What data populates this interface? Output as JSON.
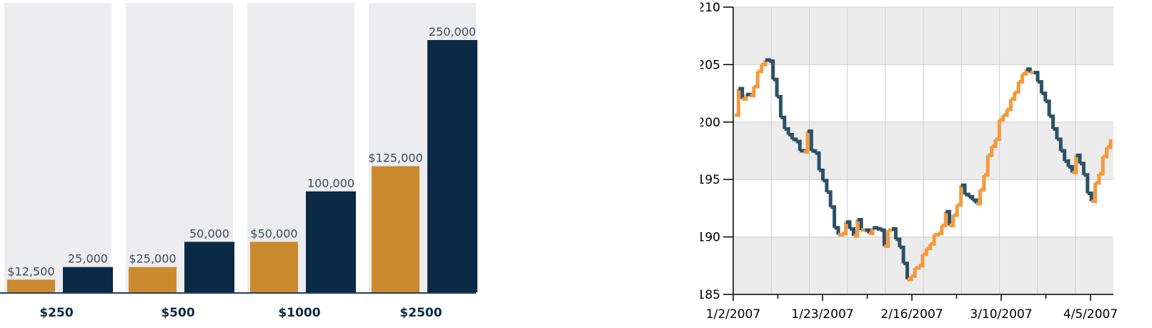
{
  "chart_data": [
    {
      "type": "bar",
      "categories": [
        "$250",
        "$500",
        "$1000",
        "$2500"
      ],
      "series": [
        {
          "values": [
            12500,
            25000,
            50000,
            125000
          ],
          "labels": [
            "$12,500",
            "$25,000",
            "$50,000",
            "$125,000"
          ]
        },
        {
          "values": [
            25000,
            50000,
            100000,
            250000
          ],
          "labels": [
            "25,000",
            "50,000",
            "100,000",
            "250,000"
          ]
        }
      ],
      "colors": {
        "series1": "#cc8a2e",
        "series2": "#0b2a45",
        "column_bg": "#ededf0",
        "baseline": "#1f3f5f"
      },
      "ylim": [
        0,
        250000
      ],
      "title": "",
      "xlabel": "",
      "ylabel": ""
    },
    {
      "type": "line",
      "title": "",
      "xlabel": "",
      "ylabel": "",
      "ylim": [
        185,
        210
      ],
      "yticks": [
        "210",
        "205",
        "200",
        "195",
        "190",
        "185"
      ],
      "xtick_labels": [
        "1/2/2007",
        "1/23/2007",
        "2/16/2007",
        "3/10/2007",
        "4/5/2007"
      ],
      "grid": true,
      "colors": {
        "up": "#f39a3c",
        "down": "#2d5066",
        "band": "#ececec",
        "grid": "#cfcfcf"
      },
      "series": [
        {
          "values": [
            200.6,
            202.9,
            202.0,
            202.4,
            202.3,
            203.1,
            204.4,
            205.0,
            205.4,
            205.3,
            203.7,
            202.2,
            200.4,
            199.4,
            198.9,
            198.5,
            198.3,
            197.5,
            197.4,
            199.2,
            197.5,
            197.3,
            195.8,
            194.9,
            193.9,
            192.6,
            190.8,
            190.2,
            190.3,
            191.3,
            190.7,
            190.1,
            191.5,
            190.6,
            190.6,
            190.3,
            190.8,
            190.7,
            190.6,
            189.2,
            190.6,
            190.7,
            189.8,
            189.1,
            187.7,
            186.3,
            186.6,
            187.3,
            187.5,
            188.5,
            189.0,
            189.4,
            190.2,
            190.3,
            191.0,
            192.2,
            191.0,
            191.9,
            192.8,
            194.5,
            193.7,
            193.5,
            193.2,
            192.9,
            194.1,
            195.4,
            197.1,
            197.9,
            198.5,
            200.2,
            200.6,
            201.1,
            202.0,
            202.6,
            203.5,
            204.2,
            204.6,
            204.3,
            204.3,
            203.5,
            202.5,
            201.8,
            200.5,
            199.4,
            198.5,
            197.5,
            196.6,
            196.1,
            195.6,
            197.1,
            196.4,
            195.4,
            193.8,
            193.1,
            194.7,
            195.5,
            197.0,
            197.8,
            198.5
          ]
        }
      ]
    }
  ]
}
